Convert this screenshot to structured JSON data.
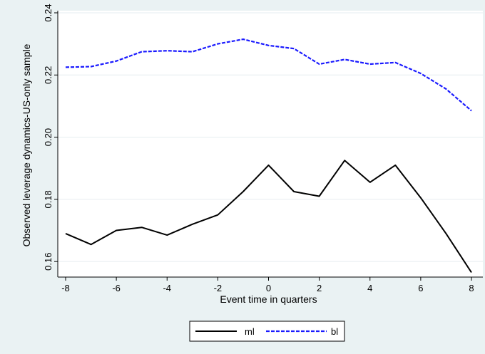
{
  "chart_data": {
    "type": "line",
    "xlabel": "Event time in quarters",
    "ylabel": "Observed leverage dynamics-US-only sample",
    "xlim": [
      -8,
      8
    ],
    "ylim": [
      0.155,
      0.24
    ],
    "xticks": [
      -8,
      -6,
      -4,
      -2,
      0,
      2,
      4,
      6,
      8
    ],
    "yticks": [
      0.16,
      0.18,
      0.2,
      0.22,
      0.24
    ],
    "ytick_labels": [
      "0.16",
      "0.18",
      "0.20",
      "0.22",
      "0.24"
    ],
    "grid": "horizontal",
    "legend_position": "bottom",
    "x": [
      -8,
      -7,
      -6,
      -5,
      -4,
      -3,
      -2,
      -1,
      0,
      1,
      2,
      3,
      4,
      5,
      6,
      7,
      8
    ],
    "series": [
      {
        "name": "ml",
        "color": "#000000",
        "style": "solid",
        "values": [
          0.169,
          0.1655,
          0.17,
          0.171,
          0.1685,
          0.172,
          0.175,
          0.1825,
          0.191,
          0.1825,
          0.181,
          0.1925,
          0.1855,
          0.191,
          0.1805,
          0.169,
          0.1565
        ]
      },
      {
        "name": "bl",
        "color": "#1a1aff",
        "style": "dashed",
        "values": [
          0.2225,
          0.2227,
          0.2245,
          0.2275,
          0.2278,
          0.2275,
          0.23,
          0.2315,
          0.2295,
          0.2285,
          0.2235,
          0.225,
          0.2235,
          0.224,
          0.2205,
          0.2155,
          0.2085
        ]
      }
    ]
  }
}
